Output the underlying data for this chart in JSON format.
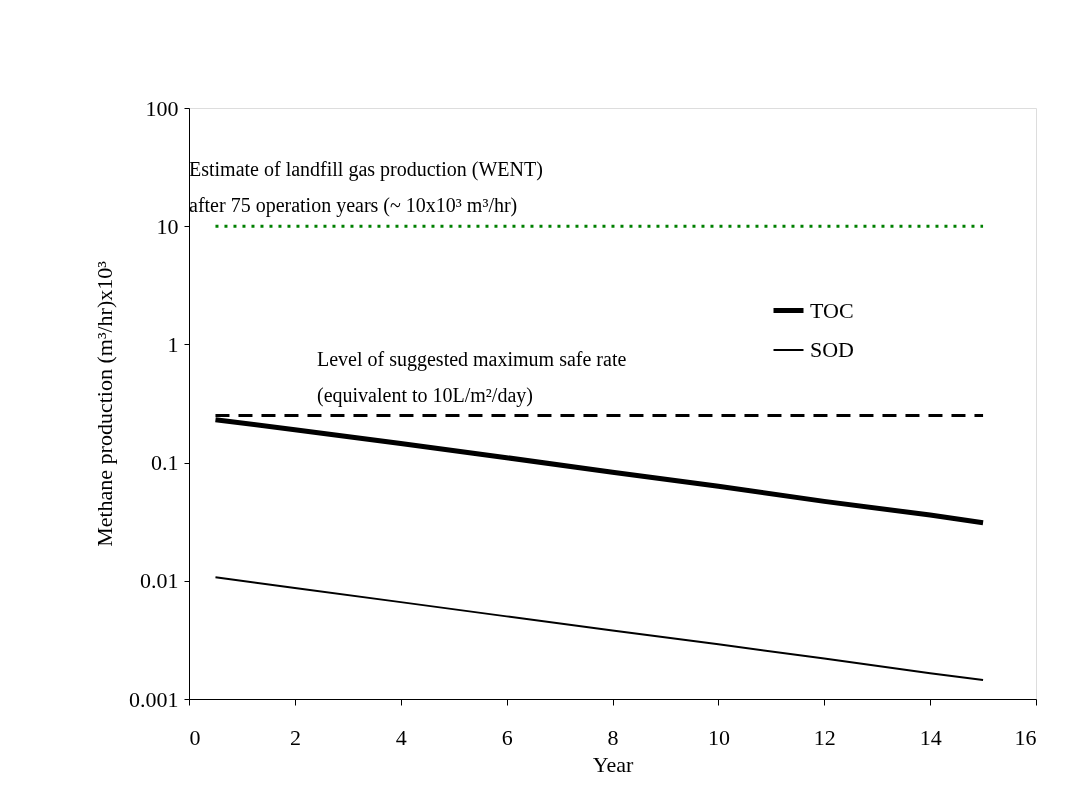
{
  "chart_data": {
    "type": "line",
    "xlabel": "Year",
    "ylabel": "Methane production (m³/hr)x10³",
    "x": [
      0.5,
      2,
      4,
      6,
      8,
      10,
      12,
      14,
      15
    ],
    "series": [
      {
        "name": "TOC",
        "color": "#000000",
        "values": [
          0.23,
          0.19,
          0.145,
          0.11,
          0.083,
          0.063,
          0.047,
          0.036,
          0.031
        ]
      },
      {
        "name": "SOD",
        "color": "#000000",
        "values": [
          0.0107,
          0.0087,
          0.0066,
          0.005,
          0.0038,
          0.0029,
          0.0022,
          0.00165,
          0.00145
        ]
      }
    ],
    "xlim": [
      0,
      16
    ],
    "xticks": [
      0,
      2,
      4,
      6,
      8,
      10,
      12,
      14,
      16
    ],
    "ylim": [
      0.001,
      100
    ],
    "yticks": [
      0.001,
      0.01,
      0.1,
      1,
      10,
      100
    ],
    "log": true,
    "grid": false,
    "legend": "top right",
    "marker": "none",
    "line_style": "solid",
    "ref_lines": [
      {
        "axis": "y",
        "value": 10,
        "label": "Estimate of landfill gas production (WENT)\nafter 75 operation years (~ 10x10³ m³/hr)",
        "color": "#008000",
        "line_style": "dotted"
      },
      {
        "axis": "y",
        "value": 0.25,
        "label": "Level of suggested maximum safe rate\n(equivalent to 10L/m²/day)",
        "color": "#000000",
        "line_style": "dashed"
      }
    ]
  }
}
